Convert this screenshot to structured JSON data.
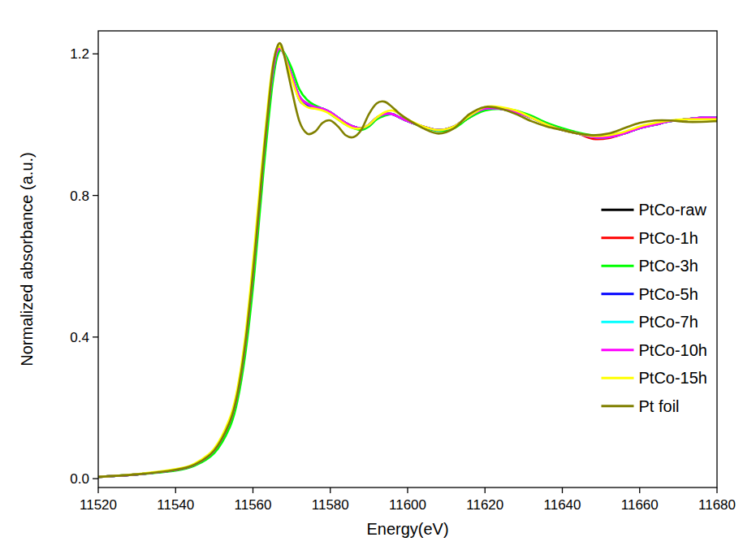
{
  "chart_data": {
    "type": "line",
    "x_label": "Energy(eV)",
    "y_label": "Normalized absorbance (a.u.)",
    "x": [
      11520,
      11530,
      11540,
      11545,
      11550,
      11554,
      11556,
      11558,
      11560,
      11562,
      11563,
      11564,
      11565,
      11566,
      11567,
      11568,
      11570,
      11572,
      11574,
      11576,
      11578,
      11580,
      11582,
      11584,
      11586,
      11588,
      11590,
      11592,
      11594,
      11596,
      11598,
      11600,
      11604,
      11608,
      11612,
      11616,
      11620,
      11624,
      11628,
      11632,
      11636,
      11640,
      11644,
      11648,
      11652,
      11656,
      11660,
      11664,
      11668,
      11672,
      11676,
      11680
    ],
    "xlim": [
      11520,
      11680
    ],
    "xticks": [
      11520,
      11540,
      11560,
      11580,
      11600,
      11620,
      11640,
      11660,
      11680
    ],
    "ylim": [
      -0.025,
      1.265
    ],
    "yticks": [
      {
        "value": 0,
        "label": "0.0"
      },
      {
        "value": 0.4,
        "label": "0.4"
      },
      {
        "value": 0.8,
        "label": "0.8"
      },
      {
        "value": 1.2,
        "label": "1.2"
      }
    ],
    "legend": "right",
    "grid": false,
    "series": [
      {
        "name": "PtCo-raw",
        "color": "#000000",
        "values": [
          0.005,
          0.012,
          0.025,
          0.04,
          0.08,
          0.16,
          0.24,
          0.38,
          0.58,
          0.82,
          0.94,
          1.05,
          1.14,
          1.2,
          1.215,
          1.2,
          1.14,
          1.08,
          1.06,
          1.05,
          1.045,
          1.035,
          1.02,
          1.005,
          0.995,
          0.99,
          1.0,
          1.02,
          1.03,
          1.03,
          1.02,
          1.01,
          0.995,
          0.985,
          0.995,
          1.02,
          1.045,
          1.045,
          1.035,
          1.02,
          1.0,
          0.985,
          0.975,
          0.965,
          0.965,
          0.975,
          0.99,
          1.0,
          1.01,
          1.015,
          1.02,
          1.02
        ]
      },
      {
        "name": "PtCo-1h",
        "color": "#FF0000",
        "values": [
          0.005,
          0.012,
          0.025,
          0.04,
          0.08,
          0.16,
          0.24,
          0.38,
          0.58,
          0.82,
          0.94,
          1.05,
          1.14,
          1.2,
          1.215,
          1.2,
          1.14,
          1.08,
          1.06,
          1.05,
          1.045,
          1.035,
          1.02,
          1.005,
          0.995,
          0.99,
          1.0,
          1.02,
          1.03,
          1.03,
          1.02,
          1.01,
          0.995,
          0.985,
          0.995,
          1.025,
          1.045,
          1.045,
          1.035,
          1.02,
          1.0,
          0.985,
          0.975,
          0.96,
          0.962,
          0.975,
          0.99,
          1.0,
          1.01,
          1.015,
          1.02,
          1.02
        ]
      },
      {
        "name": "PtCo-3h",
        "color": "#00FF00",
        "values": [
          0.005,
          0.012,
          0.023,
          0.037,
          0.072,
          0.145,
          0.22,
          0.35,
          0.54,
          0.78,
          0.9,
          1.01,
          1.11,
          1.18,
          1.21,
          1.205,
          1.16,
          1.1,
          1.07,
          1.055,
          1.045,
          1.03,
          1.015,
          1.0,
          0.99,
          0.985,
          0.995,
          1.015,
          1.025,
          1.03,
          1.02,
          1.01,
          0.993,
          0.982,
          0.99,
          1.02,
          1.04,
          1.045,
          1.04,
          1.025,
          1.005,
          0.99,
          0.978,
          0.97,
          0.968,
          0.975,
          0.99,
          1.0,
          1.01,
          1.015,
          1.018,
          1.02
        ]
      },
      {
        "name": "PtCo-5h",
        "color": "#0000FF",
        "values": [
          0.005,
          0.012,
          0.025,
          0.04,
          0.08,
          0.16,
          0.24,
          0.38,
          0.58,
          0.82,
          0.94,
          1.05,
          1.14,
          1.2,
          1.215,
          1.2,
          1.14,
          1.07,
          1.055,
          1.05,
          1.045,
          1.035,
          1.02,
          1.005,
          0.995,
          0.99,
          1.0,
          1.02,
          1.03,
          1.03,
          1.02,
          1.01,
          0.995,
          0.985,
          0.995,
          1.025,
          1.045,
          1.045,
          1.035,
          1.02,
          1.0,
          0.985,
          0.975,
          0.965,
          0.965,
          0.975,
          0.99,
          1.0,
          1.01,
          1.015,
          1.02,
          1.02
        ]
      },
      {
        "name": "PtCo-7h",
        "color": "#00FFFF",
        "values": [
          0.005,
          0.012,
          0.025,
          0.04,
          0.08,
          0.16,
          0.24,
          0.38,
          0.58,
          0.82,
          0.94,
          1.05,
          1.14,
          1.2,
          1.215,
          1.2,
          1.14,
          1.08,
          1.06,
          1.05,
          1.045,
          1.035,
          1.02,
          1.005,
          0.995,
          0.99,
          1.0,
          1.02,
          1.03,
          1.03,
          1.02,
          1.01,
          0.995,
          0.985,
          0.995,
          1.025,
          1.045,
          1.045,
          1.035,
          1.02,
          1.0,
          0.985,
          0.975,
          0.965,
          0.965,
          0.975,
          0.99,
          1.0,
          1.01,
          1.015,
          1.02,
          1.02
        ]
      },
      {
        "name": "PtCo-10h",
        "color": "#FF00FF",
        "values": [
          0.005,
          0.012,
          0.025,
          0.04,
          0.08,
          0.16,
          0.24,
          0.38,
          0.58,
          0.82,
          0.94,
          1.05,
          1.14,
          1.2,
          1.215,
          1.2,
          1.14,
          1.08,
          1.06,
          1.05,
          1.045,
          1.035,
          1.02,
          1.005,
          0.995,
          0.99,
          1.0,
          1.02,
          1.03,
          1.03,
          1.02,
          1.01,
          0.995,
          0.985,
          0.995,
          1.025,
          1.045,
          1.045,
          1.035,
          1.02,
          1.0,
          0.985,
          0.975,
          0.965,
          0.965,
          0.975,
          0.99,
          1.0,
          1.01,
          1.015,
          1.02,
          1.02
        ]
      },
      {
        "name": "PtCo-15h",
        "color": "#FFFF00",
        "values": [
          0.005,
          0.013,
          0.027,
          0.043,
          0.085,
          0.17,
          0.255,
          0.4,
          0.61,
          0.85,
          0.96,
          1.07,
          1.16,
          1.21,
          1.22,
          1.2,
          1.13,
          1.07,
          1.05,
          1.045,
          1.04,
          1.03,
          1.015,
          1.0,
          0.99,
          0.99,
          1.0,
          1.02,
          1.035,
          1.04,
          1.03,
          1.015,
          0.995,
          0.985,
          0.995,
          1.025,
          1.05,
          1.05,
          1.04,
          1.02,
          1.0,
          0.985,
          0.975,
          0.968,
          0.97,
          0.98,
          0.995,
          1.005,
          1.012,
          1.015,
          1.015,
          1.015
        ]
      },
      {
        "name": "Pt foil",
        "color": "#808000",
        "values": [
          0.005,
          0.012,
          0.025,
          0.04,
          0.08,
          0.16,
          0.24,
          0.38,
          0.58,
          0.82,
          0.94,
          1.05,
          1.15,
          1.21,
          1.23,
          1.2,
          1.1,
          1.01,
          0.975,
          0.98,
          1.005,
          1.012,
          0.995,
          0.97,
          0.965,
          0.985,
          1.03,
          1.06,
          1.065,
          1.05,
          1.03,
          1.015,
          0.99,
          0.975,
          0.99,
          1.03,
          1.05,
          1.045,
          1.03,
          1.01,
          0.995,
          0.985,
          0.975,
          0.97,
          0.975,
          0.99,
          1.005,
          1.012,
          1.012,
          1.008,
          1.008,
          1.01
        ]
      }
    ]
  }
}
